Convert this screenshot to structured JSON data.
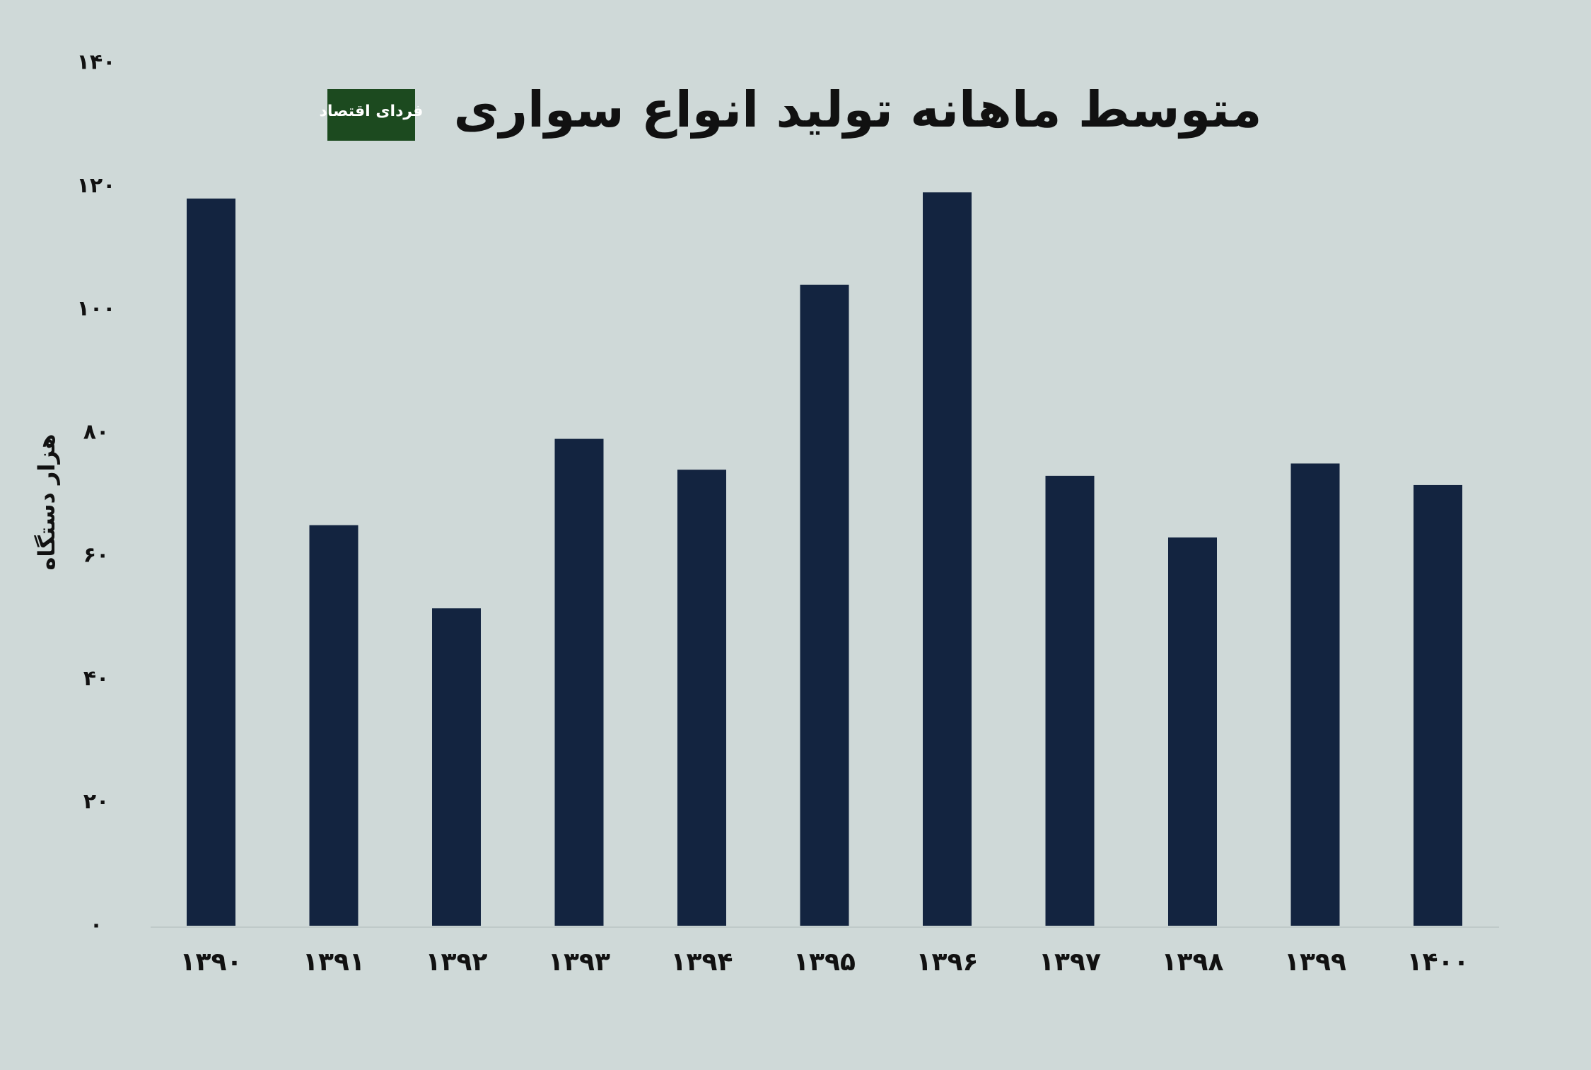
{
  "chart_data": {
    "type": "bar",
    "title": "متوسط ماهانه تولید انواع سواری",
    "logo": "فردای اقتصاد",
    "y_label": "هزار دستگاه",
    "categories": [
      "۱۳۹۰",
      "۱۳۹۱",
      "۱۳۹۲",
      "۱۳۹۳",
      "۱۳۹۴",
      "۱۳۹۵",
      "۱۳۹۶",
      "۱۳۹۷",
      "۱۳۹۸",
      "۱۳۹۹",
      "۱۴۰۰"
    ],
    "values": [
      118,
      65,
      51.5,
      79,
      74,
      104,
      119,
      73,
      63,
      75,
      71.5
    ],
    "color": "#132440",
    "ylim": [
      0,
      140
    ],
    "yticks": [
      {
        "value": 0,
        "label": "۰"
      },
      {
        "value": 20,
        "label": "۲۰"
      },
      {
        "value": 40,
        "label": "۴۰"
      },
      {
        "value": 60,
        "label": "۶۰"
      },
      {
        "value": 80,
        "label": "۸۰"
      },
      {
        "value": 100,
        "label": "۱۰۰"
      },
      {
        "value": 120,
        "label": "۱۲۰"
      },
      {
        "value": 140,
        "label": "۱۴۰"
      }
    ],
    "grid": false
  }
}
